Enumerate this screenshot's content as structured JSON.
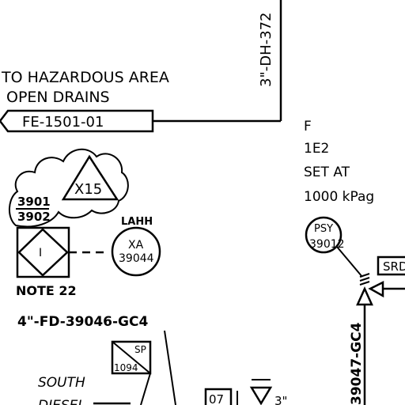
{
  "pipe_vertical_top": "3\"-DH-372",
  "destination": {
    "line1": "TO HAZARDOUS AREA",
    "line2": "OPEN DRAINS",
    "tag": "FE-1501-01"
  },
  "revision_cloud": {
    "delta": "X15",
    "num1": "3901",
    "num2": "3902"
  },
  "interlock": {
    "symbol": "I",
    "note": "NOTE 22"
  },
  "alarm": {
    "label": "LAHH",
    "tag_top": "XA",
    "tag_bottom": "39044"
  },
  "pipe_fd": "4\"-FD-39046-GC4",
  "psv_notes": {
    "line1": "F",
    "line2": "1E2",
    "line3": "SET AT",
    "line4": "1000 kPag"
  },
  "psv": {
    "tag_top": "PSY",
    "tag_bottom": "39012"
  },
  "srd_box": "SRD",
  "pipe_vertical_right": "39047-GC4",
  "sp_box": {
    "top": "SP",
    "bottom": "1094"
  },
  "south": {
    "line1": "SOUTH",
    "line2": "DIESEL"
  },
  "bottom_box": "07",
  "bottom_pipe_size": "3\""
}
